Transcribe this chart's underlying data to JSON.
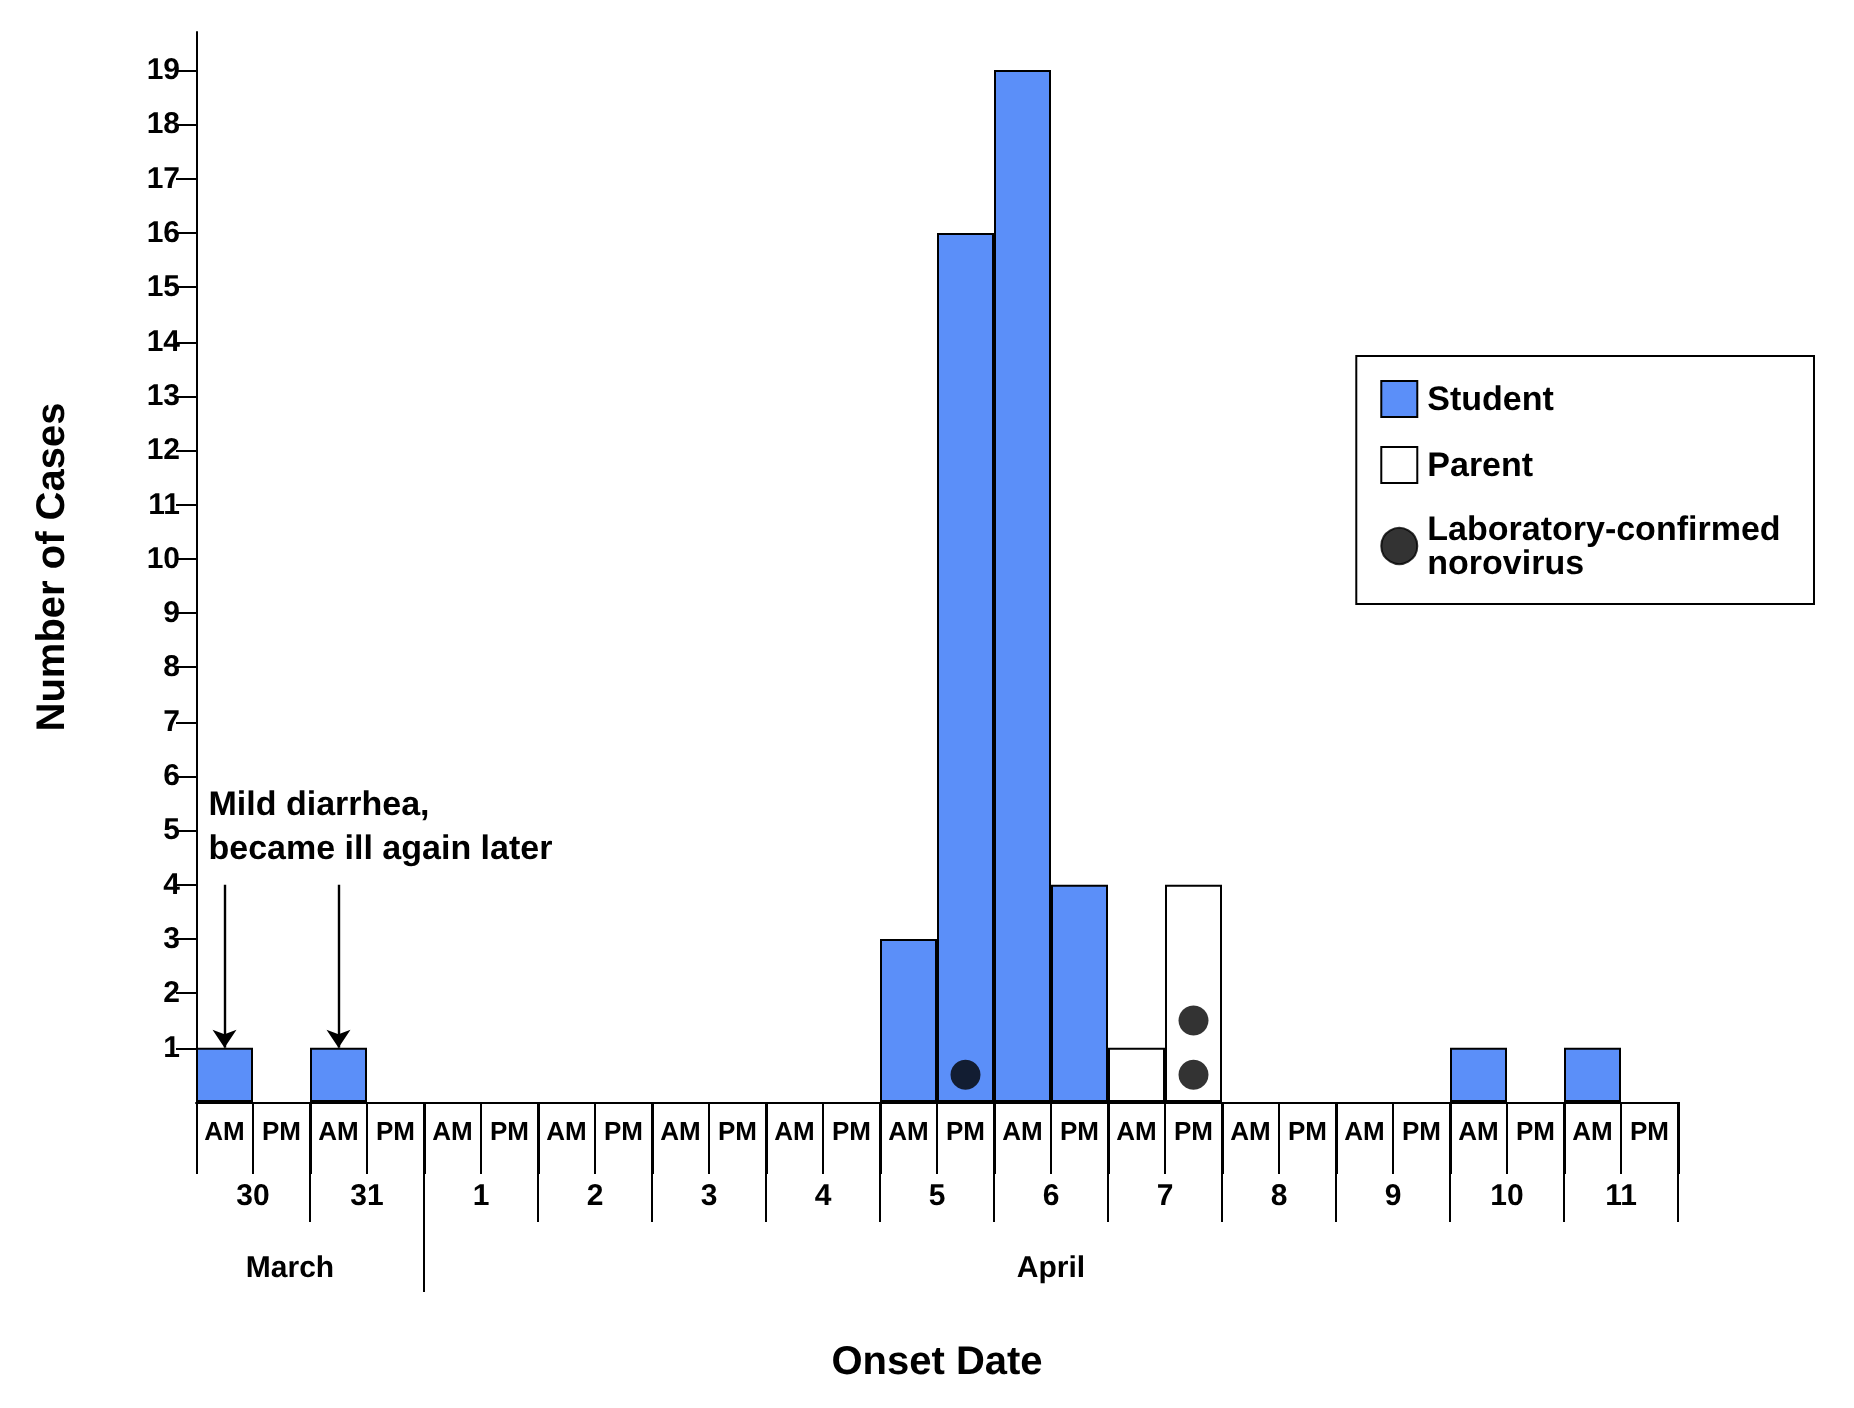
{
  "chart_data": {
    "type": "bar",
    "stacked": true,
    "xlabel": "Onset Date",
    "ylabel": "Number of Cases",
    "categories": [
      "AM",
      "PM",
      "AM",
      "PM",
      "AM",
      "PM",
      "AM",
      "PM",
      "AM",
      "PM",
      "AM",
      "PM",
      "AM",
      "PM",
      "AM",
      "PM",
      "AM",
      "PM",
      "AM",
      "PM",
      "AM",
      "PM",
      "AM",
      "PM",
      "AM",
      "PM"
    ],
    "series": [
      {
        "name": "Student",
        "color": "#5b8ff9",
        "values": [
          1,
          0,
          1,
          0,
          0,
          0,
          0,
          0,
          0,
          0,
          0,
          0,
          3,
          16,
          19,
          4,
          0,
          0,
          0,
          0,
          0,
          0,
          1,
          0,
          1,
          0
        ]
      },
      {
        "name": "Parent",
        "color": "#ffffff",
        "values": [
          0,
          0,
          0,
          0,
          0,
          0,
          0,
          0,
          0,
          0,
          0,
          0,
          0,
          0,
          0,
          0,
          1,
          4,
          0,
          0,
          0,
          0,
          0,
          0,
          0,
          0
        ]
      },
      {
        "name": "Laboratory-confirmed norovirus",
        "type": "scatter",
        "color": "#000000",
        "values": [
          null,
          null,
          null,
          null,
          null,
          null,
          null,
          null,
          null,
          null,
          null,
          null,
          null,
          0.5,
          null,
          null,
          null,
          0.5,
          null,
          null,
          null,
          null,
          null,
          null,
          null,
          null
        ]
      },
      {
        "type": "scatter",
        "color": "#000000",
        "values": [
          null,
          null,
          null,
          null,
          null,
          null,
          null,
          null,
          null,
          null,
          null,
          null,
          null,
          null,
          null,
          null,
          null,
          1.5,
          null,
          null,
          null,
          null,
          null,
          null,
          null,
          null
        ]
      }
    ],
    "ylim": [
      0,
      19.7
    ],
    "yticks": [
      1,
      2,
      3,
      4,
      5,
      6,
      7,
      8,
      9,
      10,
      11,
      12,
      13,
      14,
      15,
      16,
      17,
      18,
      19
    ],
    "grid": false,
    "legend": "top right",
    "annotations": [
      {
        "text": "Mild diarrhea,\nbecame ill again later",
        "x": "AM",
        "y": 1
      },
      "30",
      "31",
      "1",
      "2",
      "3",
      "4",
      "5",
      "6",
      "7",
      "8",
      "9",
      "10",
      "11",
      "March",
      "April"
    ]
  }
}
